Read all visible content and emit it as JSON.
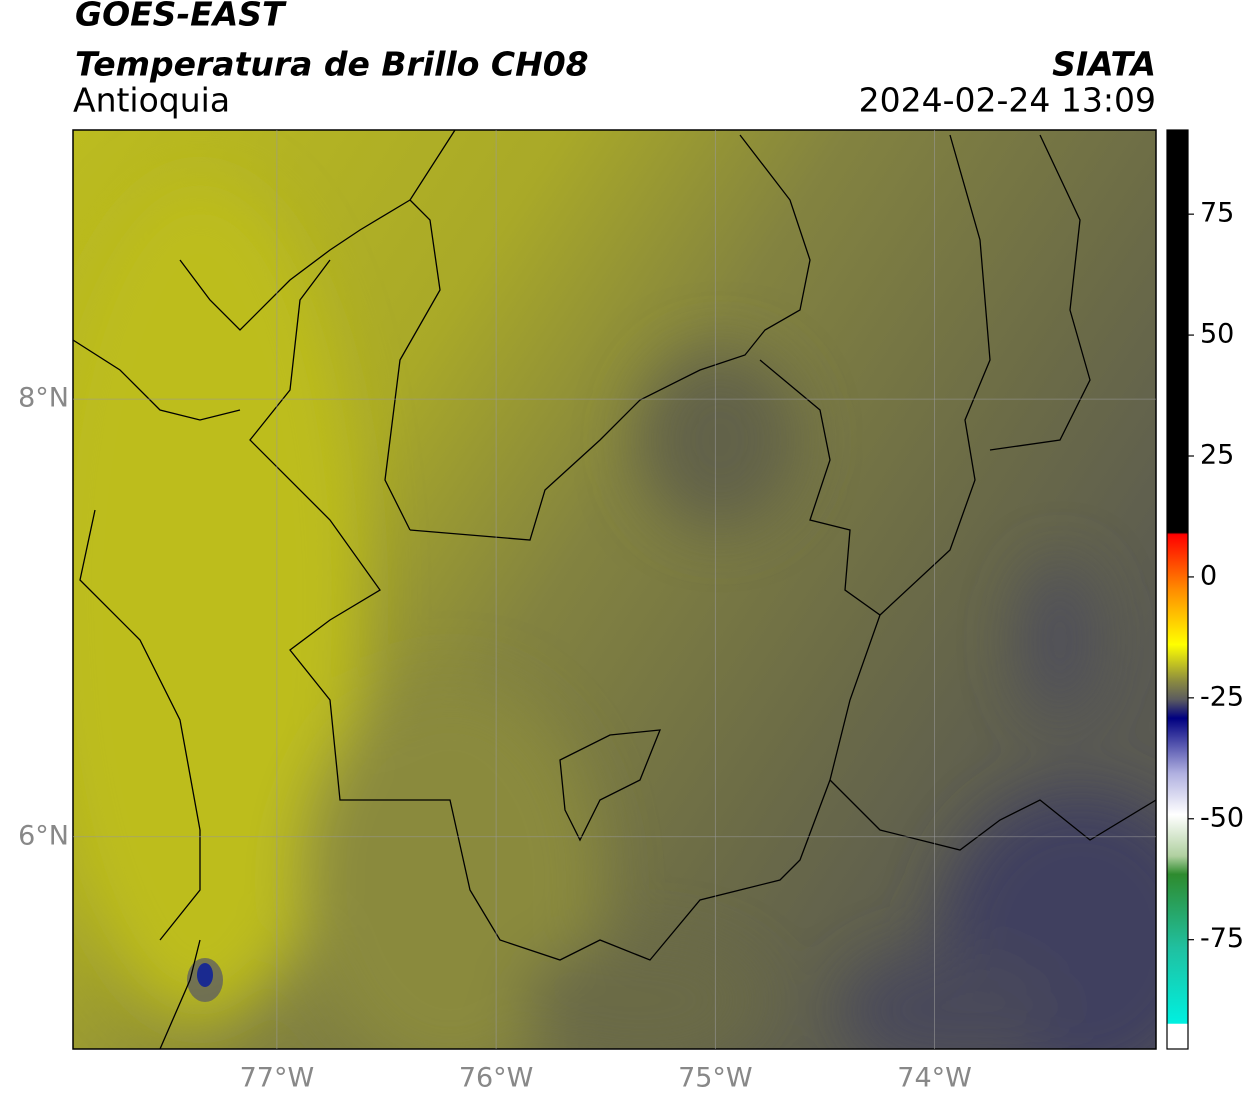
{
  "header": {
    "title": "GOES-EAST",
    "subtitle": "Temperatura de Brillo CH08",
    "region": "Antioquia",
    "agency": "SIATA",
    "datetime": "2024-02-24 13:09"
  },
  "map": {
    "xlim": [
      -77.93,
      -72.99
    ],
    "ylim": [
      5.03,
      9.23
    ],
    "xticks": [
      {
        "value": -77,
        "label": "77°W"
      },
      {
        "value": -76,
        "label": "76°W"
      },
      {
        "value": -75,
        "label": "75°W"
      },
      {
        "value": -74,
        "label": "74°W"
      }
    ],
    "yticks": [
      {
        "value": 8,
        "label": "8°N"
      },
      {
        "value": 6,
        "label": "6°N"
      }
    ],
    "grid": true
  },
  "colorbar": {
    "lim": [
      -97.6,
      92.4
    ],
    "ticks": [
      75,
      50,
      25,
      0,
      -25,
      -50,
      -75
    ]
  }
}
